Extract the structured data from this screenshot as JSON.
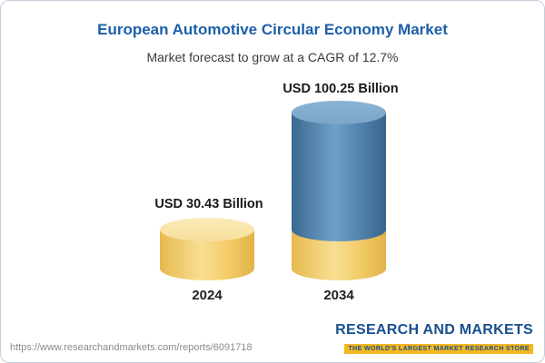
{
  "header": {
    "title": "European Automotive Circular Economy Market",
    "subtitle": "Market forecast to grow at a CAGR of 12.7%"
  },
  "chart_data": {
    "type": "bar",
    "categories": [
      "2024",
      "2034"
    ],
    "values": [
      30.43,
      100.25
    ],
    "value_labels": [
      "USD 30.43 Billion",
      "USD 100.25 Billion"
    ],
    "unit": "USD Billion",
    "title": "European Automotive Circular Economy Market",
    "subtitle": "Market forecast to grow at a CAGR of 12.7%",
    "ylim": [
      0,
      110
    ],
    "grid": false,
    "legend": "none",
    "colors": {
      "bar_2024": "#F2CC68",
      "bar_2034_growth": "#4F80AB",
      "bar_2034_base": "#F2CC68",
      "title_text": "#1D5FA9"
    }
  },
  "footer": {
    "url": "https://www.researchandmarkets.com/reports/6091718",
    "logo_line1": "RESEARCH AND MARKETS",
    "logo_tagline": "THE WORLD'S LARGEST MARKET RESEARCH STORE"
  }
}
